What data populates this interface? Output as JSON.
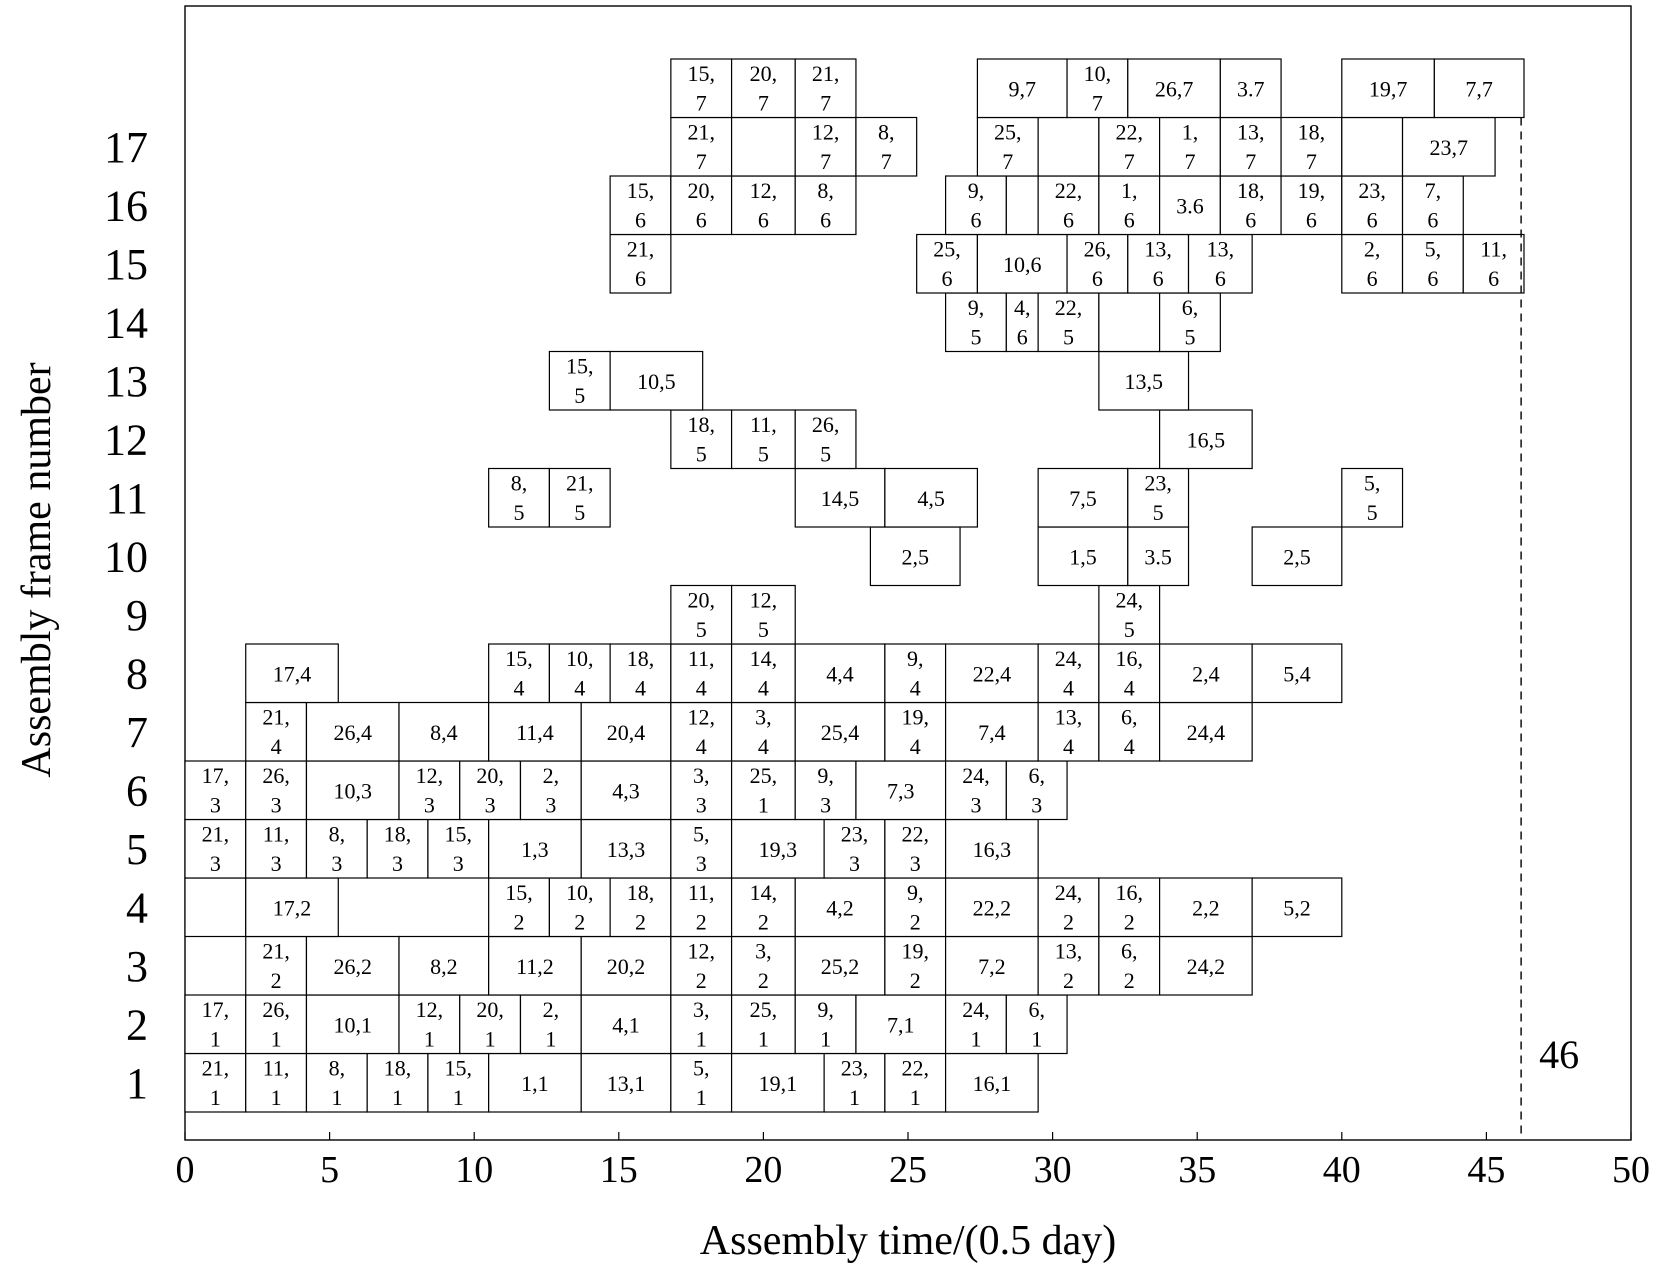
{
  "chart_data": {
    "type": "gantt",
    "xlabel": "Assembly time/(0.5 day)",
    "ylabel": "Assembly frame number",
    "xlim": [
      0,
      50
    ],
    "x_ticks": [
      0,
      5,
      10,
      15,
      20,
      25,
      30,
      35,
      40,
      45,
      50
    ],
    "y_ticks": [
      1,
      2,
      3,
      4,
      5,
      6,
      7,
      8,
      9,
      10,
      11,
      12,
      13,
      14,
      15,
      16,
      17
    ],
    "row_labels": [
      "1",
      "2",
      "3",
      "4",
      "5",
      "6",
      "7",
      "8",
      "9",
      "10",
      "11",
      "12",
      "13",
      "14",
      "15",
      "16",
      "17",
      ""
    ],
    "reference_line": {
      "x": 46.2,
      "label": "46"
    },
    "rows": [
      {
        "row": 1,
        "tasks": [
          {
            "label": "21,1",
            "start": 0,
            "end": 2.1
          },
          {
            "label": "11,1",
            "start": 2.1,
            "end": 4.2
          },
          {
            "label": "8,1",
            "start": 4.2,
            "end": 6.3
          },
          {
            "label": "18,1",
            "start": 6.3,
            "end": 8.4
          },
          {
            "label": "15,1",
            "start": 8.4,
            "end": 10.5
          },
          {
            "label": "1,1",
            "start": 10.5,
            "end": 13.7
          },
          {
            "label": "13,1",
            "start": 13.7,
            "end": 16.8
          },
          {
            "label": "5,1",
            "start": 16.8,
            "end": 18.9
          },
          {
            "label": "19,1",
            "start": 18.9,
            "end": 22.1
          },
          {
            "label": "23,1",
            "start": 22.1,
            "end": 24.2
          },
          {
            "label": "22,1",
            "start": 24.2,
            "end": 26.3
          },
          {
            "label": "16,1",
            "start": 26.3,
            "end": 29.5
          }
        ]
      },
      {
        "row": 2,
        "tasks": [
          {
            "label": "17,1",
            "start": 0,
            "end": 2.1
          },
          {
            "label": "26,1",
            "start": 2.1,
            "end": 4.2
          },
          {
            "label": "10,1",
            "start": 4.2,
            "end": 7.4
          },
          {
            "label": "12,1",
            "start": 7.4,
            "end": 9.5
          },
          {
            "label": "20,1",
            "start": 9.5,
            "end": 11.6
          },
          {
            "label": "2,1",
            "start": 11.6,
            "end": 13.7
          },
          {
            "label": "4,1",
            "start": 13.7,
            "end": 16.8
          },
          {
            "label": "3,1",
            "start": 16.8,
            "end": 18.9
          },
          {
            "label": "25,1",
            "start": 18.9,
            "end": 21.1
          },
          {
            "label": "9,1",
            "start": 21.1,
            "end": 23.2
          },
          {
            "label": "7,1",
            "start": 23.2,
            "end": 26.3
          },
          {
            "label": "24,1",
            "start": 26.3,
            "end": 28.4
          },
          {
            "label": "6,1",
            "start": 28.4,
            "end": 30.5
          }
        ]
      },
      {
        "row": 3,
        "tasks": [
          {
            "label": "21,2",
            "start": 2.1,
            "end": 4.2
          },
          {
            "label": "26,2",
            "start": 4.2,
            "end": 7.4
          },
          {
            "label": "8,2",
            "start": 7.4,
            "end": 10.5
          },
          {
            "label": "11,2",
            "start": 10.5,
            "end": 13.7
          },
          {
            "label": "20,2",
            "start": 13.7,
            "end": 16.8
          },
          {
            "label": "12,2",
            "start": 16.8,
            "end": 18.9
          },
          {
            "label": "3,2",
            "start": 18.9,
            "end": 21.1
          },
          {
            "label": "25,2",
            "start": 21.1,
            "end": 24.2
          },
          {
            "label": "19,2",
            "start": 24.2,
            "end": 26.3
          },
          {
            "label": "7,2",
            "start": 26.3,
            "end": 29.5
          },
          {
            "label": "13,2",
            "start": 29.5,
            "end": 31.6
          },
          {
            "label": "6,2",
            "start": 31.6,
            "end": 33.7
          },
          {
            "label": "24,2",
            "start": 33.7,
            "end": 36.9
          }
        ]
      },
      {
        "row": 4,
        "tasks": [
          {
            "label": "",
            "start": 0,
            "end": 2.1
          },
          {
            "label": "17,2",
            "start": 2.1,
            "end": 5.3
          },
          {
            "label": "15,2",
            "start": 10.5,
            "end": 12.6
          },
          {
            "label": "10,2",
            "start": 12.6,
            "end": 14.7
          },
          {
            "label": "18,2",
            "start": 14.7,
            "end": 16.8
          },
          {
            "label": "11,2",
            "start": 16.8,
            "end": 18.9
          },
          {
            "label": "14,2",
            "start": 18.9,
            "end": 21.1
          },
          {
            "label": "4,2",
            "start": 21.1,
            "end": 24.2
          },
          {
            "label": "9,2",
            "start": 24.2,
            "end": 26.3
          },
          {
            "label": "22,2",
            "start": 26.3,
            "end": 29.5
          },
          {
            "label": "24,2",
            "start": 29.5,
            "end": 31.6
          },
          {
            "label": "16,2",
            "start": 31.6,
            "end": 33.7
          },
          {
            "label": "2,2",
            "start": 33.7,
            "end": 36.9
          },
          {
            "label": "5,2",
            "start": 36.9,
            "end": 40.0
          }
        ]
      },
      {
        "row": 5,
        "tasks": [
          {
            "label": "21,3",
            "start": 0,
            "end": 2.1
          },
          {
            "label": "11,3",
            "start": 2.1,
            "end": 4.2
          },
          {
            "label": "8,3",
            "start": 4.2,
            "end": 6.3
          },
          {
            "label": "18,3",
            "start": 6.3,
            "end": 8.4
          },
          {
            "label": "15,3",
            "start": 8.4,
            "end": 10.5
          },
          {
            "label": "1,3",
            "start": 10.5,
            "end": 13.7
          },
          {
            "label": "13,3",
            "start": 13.7,
            "end": 16.8
          },
          {
            "label": "5,3",
            "start": 16.8,
            "end": 18.9
          },
          {
            "label": "19,3",
            "start": 18.9,
            "end": 22.1
          },
          {
            "label": "23,3",
            "start": 22.1,
            "end": 24.2
          },
          {
            "label": "22,3",
            "start": 24.2,
            "end": 26.3
          },
          {
            "label": "16,3",
            "start": 26.3,
            "end": 29.5
          }
        ]
      },
      {
        "row": 6,
        "tasks": [
          {
            "label": "17,3",
            "start": 0,
            "end": 2.1
          },
          {
            "label": "26,3",
            "start": 2.1,
            "end": 4.2
          },
          {
            "label": "10,3",
            "start": 4.2,
            "end": 7.4
          },
          {
            "label": "12,3",
            "start": 7.4,
            "end": 9.5
          },
          {
            "label": "20,3",
            "start": 9.5,
            "end": 11.6
          },
          {
            "label": "2,3",
            "start": 11.6,
            "end": 13.7
          },
          {
            "label": "4,3",
            "start": 13.7,
            "end": 16.8
          },
          {
            "label": "3,3",
            "start": 16.8,
            "end": 18.9
          },
          {
            "label": "25,1",
            "start": 18.9,
            "end": 21.1
          },
          {
            "label": "9,3",
            "start": 21.1,
            "end": 23.2
          },
          {
            "label": "7,3",
            "start": 23.2,
            "end": 26.3
          },
          {
            "label": "24,3",
            "start": 26.3,
            "end": 28.4
          },
          {
            "label": "6,3",
            "start": 28.4,
            "end": 30.5
          }
        ]
      },
      {
        "row": 7,
        "tasks": [
          {
            "label": "21,4",
            "start": 2.1,
            "end": 4.2
          },
          {
            "label": "26,4",
            "start": 4.2,
            "end": 7.4
          },
          {
            "label": "8,4",
            "start": 7.4,
            "end": 10.5
          },
          {
            "label": "11,4",
            "start": 10.5,
            "end": 13.7
          },
          {
            "label": "20,4",
            "start": 13.7,
            "end": 16.8
          },
          {
            "label": "12,4",
            "start": 16.8,
            "end": 18.9
          },
          {
            "label": "3,4",
            "start": 18.9,
            "end": 21.1
          },
          {
            "label": "25,4",
            "start": 21.1,
            "end": 24.2
          },
          {
            "label": "19,4",
            "start": 24.2,
            "end": 26.3
          },
          {
            "label": "7,4",
            "start": 26.3,
            "end": 29.5
          },
          {
            "label": "13,4",
            "start": 29.5,
            "end": 31.6
          },
          {
            "label": "6,4",
            "start": 31.6,
            "end": 33.7
          },
          {
            "label": "24,4",
            "start": 33.7,
            "end": 36.9
          }
        ]
      },
      {
        "row": 8,
        "tasks": [
          {
            "label": "17,4",
            "start": 2.1,
            "end": 5.3
          },
          {
            "label": "15,4",
            "start": 10.5,
            "end": 12.6
          },
          {
            "label": "10,4",
            "start": 12.6,
            "end": 14.7
          },
          {
            "label": "18,4",
            "start": 14.7,
            "end": 16.8
          },
          {
            "label": "11,4",
            "start": 16.8,
            "end": 18.9
          },
          {
            "label": "14,4",
            "start": 18.9,
            "end": 21.1
          },
          {
            "label": "4,4",
            "start": 21.1,
            "end": 24.2
          },
          {
            "label": "9,4",
            "start": 24.2,
            "end": 26.3
          },
          {
            "label": "22,4",
            "start": 26.3,
            "end": 29.5
          },
          {
            "label": "24,4",
            "start": 29.5,
            "end": 31.6
          },
          {
            "label": "16,4",
            "start": 31.6,
            "end": 33.7
          },
          {
            "label": "2,4",
            "start": 33.7,
            "end": 36.9
          },
          {
            "label": "5,4",
            "start": 36.9,
            "end": 40.0
          }
        ]
      },
      {
        "row": 9,
        "tasks": [
          {
            "label": "20,5",
            "start": 16.8,
            "end": 18.9
          },
          {
            "label": "12,5",
            "start": 18.9,
            "end": 21.1
          },
          {
            "label": "24,5",
            "start": 31.6,
            "end": 33.7
          }
        ]
      },
      {
        "row": 10,
        "tasks": [
          {
            "label": "2,5",
            "start": 23.7,
            "end": 26.8
          },
          {
            "label": "1,5",
            "start": 29.5,
            "end": 32.6
          },
          {
            "label": "3.5",
            "start": 32.6,
            "end": 34.7
          },
          {
            "label": "2,5",
            "start": 36.9,
            "end": 40.0
          }
        ]
      },
      {
        "row": 11,
        "tasks": [
          {
            "label": "8,5",
            "start": 10.5,
            "end": 12.6
          },
          {
            "label": "21,5",
            "start": 12.6,
            "end": 14.7
          },
          {
            "label": "14,5",
            "start": 21.1,
            "end": 24.2
          },
          {
            "label": "4,5",
            "start": 24.2,
            "end": 27.4
          },
          {
            "label": "7,5",
            "start": 29.5,
            "end": 32.6
          },
          {
            "label": "23,5",
            "start": 32.6,
            "end": 34.7
          },
          {
            "label": "5,5",
            "start": 40.0,
            "end": 42.1
          }
        ]
      },
      {
        "row": 12,
        "tasks": [
          {
            "label": "18,5",
            "start": 16.8,
            "end": 18.9
          },
          {
            "label": "11,5",
            "start": 18.9,
            "end": 21.1
          },
          {
            "label": "26,5",
            "start": 21.1,
            "end": 23.2
          },
          {
            "label": "16,5",
            "start": 33.7,
            "end": 36.9
          }
        ]
      },
      {
        "row": 13,
        "tasks": [
          {
            "label": "15,5",
            "start": 12.6,
            "end": 14.7
          },
          {
            "label": "10,5",
            "start": 14.7,
            "end": 17.9
          },
          {
            "label": "13,5",
            "start": 31.6,
            "end": 34.7
          }
        ]
      },
      {
        "row": 14,
        "tasks": [
          {
            "label": "9,5",
            "start": 26.3,
            "end": 28.4
          },
          {
            "label": "4,6",
            "start": 28.4,
            "end": 29.5,
            "small": true
          },
          {
            "label": "22,5",
            "start": 29.5,
            "end": 31.6
          },
          {
            "label": "",
            "start": 31.6,
            "end": 33.7
          },
          {
            "label": "6,5",
            "start": 33.7,
            "end": 35.8
          }
        ]
      },
      {
        "row": 15,
        "tasks": [
          {
            "label": "21,6",
            "start": 14.7,
            "end": 16.8
          },
          {
            "label": "25,6",
            "start": 25.3,
            "end": 27.4
          },
          {
            "label": "10,6",
            "start": 27.4,
            "end": 30.5
          },
          {
            "label": "26,6",
            "start": 30.5,
            "end": 32.6
          },
          {
            "label": "13,6",
            "start": 32.6,
            "end": 34.7
          },
          {
            "label": "13,6",
            "start": 34.7,
            "end": 36.9
          },
          {
            "label": "2,6",
            "start": 40.0,
            "end": 42.1
          },
          {
            "label": "5,6",
            "start": 42.1,
            "end": 44.2
          },
          {
            "label": "11,6",
            "start": 44.2,
            "end": 46.3
          }
        ]
      },
      {
        "row": 16,
        "tasks": [
          {
            "label": "15,6",
            "start": 14.7,
            "end": 16.8
          },
          {
            "label": "20,6",
            "start": 16.8,
            "end": 18.9
          },
          {
            "label": "12,6",
            "start": 18.9,
            "end": 21.1
          },
          {
            "label": "8,6",
            "start": 21.1,
            "end": 23.2
          },
          {
            "label": "9,6",
            "start": 26.3,
            "end": 28.4
          },
          {
            "label": "",
            "start": 28.4,
            "end": 29.5
          },
          {
            "label": "22,6",
            "start": 29.5,
            "end": 31.6
          },
          {
            "label": "1,6",
            "start": 31.6,
            "end": 33.7
          },
          {
            "label": "3.6",
            "start": 33.7,
            "end": 35.8
          },
          {
            "label": "18,6",
            "start": 35.8,
            "end": 37.9
          },
          {
            "label": "19,6",
            "start": 37.9,
            "end": 40.0
          },
          {
            "label": "23,6",
            "start": 40.0,
            "end": 42.1
          },
          {
            "label": "7,6",
            "start": 42.1,
            "end": 44.2
          }
        ]
      },
      {
        "row": 17,
        "tasks": [
          {
            "label": "21,7",
            "start": 16.8,
            "end": 18.9
          },
          {
            "label": "",
            "start": 18.9,
            "end": 21.1
          },
          {
            "label": "12,7",
            "start": 21.1,
            "end": 23.2
          },
          {
            "label": "8,7",
            "start": 23.2,
            "end": 25.3
          },
          {
            "label": "25,7",
            "start": 27.4,
            "end": 29.5
          },
          {
            "label": "",
            "start": 29.5,
            "end": 31.6
          },
          {
            "label": "22,7",
            "start": 31.6,
            "end": 33.7
          },
          {
            "label": "1,7",
            "start": 33.7,
            "end": 35.8
          },
          {
            "label": "13,7",
            "start": 35.8,
            "end": 37.9
          },
          {
            "label": "18,7",
            "start": 37.9,
            "end": 40.0
          },
          {
            "label": "",
            "start": 40.0,
            "end": 42.1
          },
          {
            "label": "23,7",
            "start": 42.1,
            "end": 45.3
          }
        ]
      },
      {
        "row": 18,
        "tasks": [
          {
            "label": "15,7",
            "start": 16.8,
            "end": 18.9
          },
          {
            "label": "20,7",
            "start": 18.9,
            "end": 21.1
          },
          {
            "label": "21,7",
            "start": 21.1,
            "end": 23.2
          },
          {
            "label": "9,7",
            "start": 27.4,
            "end": 30.5
          },
          {
            "label": "10,7",
            "start": 30.5,
            "end": 32.6
          },
          {
            "label": "26,7",
            "start": 32.6,
            "end": 35.8
          },
          {
            "label": "3.7",
            "start": 35.8,
            "end": 37.9
          },
          {
            "label": "19,7",
            "start": 40.0,
            "end": 43.2
          },
          {
            "label": "7,7",
            "start": 43.2,
            "end": 46.3
          }
        ]
      }
    ]
  }
}
